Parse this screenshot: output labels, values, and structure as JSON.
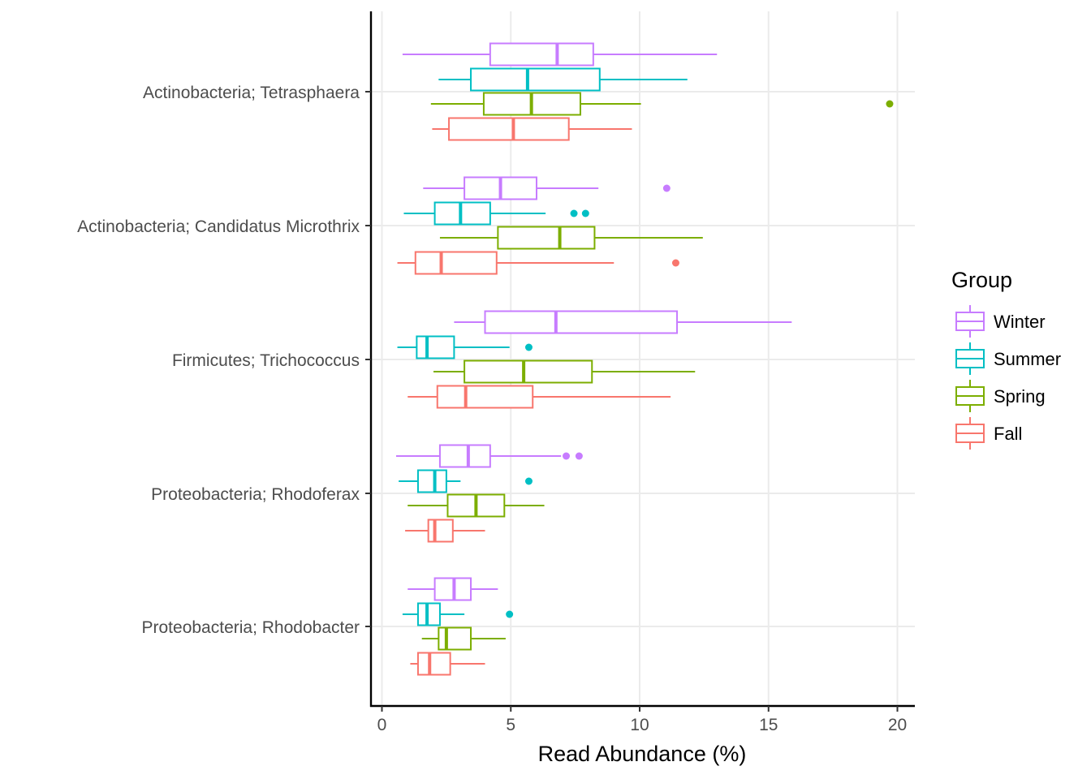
{
  "chart_data": {
    "type": "boxplot",
    "orientation": "horizontal",
    "xlabel": "Read Abundance (%)",
    "ylabel": "",
    "xlim": [
      -0.4,
      20.7
    ],
    "x_ticks": [
      "0",
      "5",
      "10",
      "15",
      "20"
    ],
    "grid": "major",
    "categories": [
      "Actinobacteria; Tetrasphaera",
      "Actinobacteria; Candidatus Microthrix",
      "Firmicutes; Trichococcus",
      "Proteobacteria; Rhodoferax",
      "Proteobacteria; Rhodobacter"
    ],
    "legend": {
      "title": "Group",
      "placement": "right",
      "entries": [
        "Winter",
        "Summer",
        "Spring",
        "Fall"
      ]
    },
    "series": [
      {
        "name": "Winter",
        "color": "#C77CFF",
        "boxes": [
          {
            "min": 0.8,
            "q1": 4.2,
            "median": 6.8,
            "q3": 8.2,
            "max": 13.0,
            "outliers": []
          },
          {
            "min": 1.6,
            "q1": 3.2,
            "median": 4.6,
            "q3": 6.0,
            "max": 8.4,
            "outliers": [
              11.05
            ]
          },
          {
            "min": 2.8,
            "q1": 4.0,
            "median": 6.75,
            "q3": 11.45,
            "max": 15.9,
            "outliers": []
          },
          {
            "min": 0.55,
            "q1": 2.25,
            "median": 3.35,
            "q3": 4.2,
            "max": 6.95,
            "outliers": [
              7.15,
              7.65
            ]
          },
          {
            "min": 1.0,
            "q1": 2.05,
            "median": 2.8,
            "q3": 3.45,
            "max": 4.5,
            "outliers": []
          }
        ]
      },
      {
        "name": "Summer",
        "color": "#00BFC4",
        "boxes": [
          {
            "min": 2.2,
            "q1": 3.45,
            "median": 5.65,
            "q3": 8.45,
            "max": 11.85,
            "outliers": []
          },
          {
            "min": 0.85,
            "q1": 2.05,
            "median": 3.05,
            "q3": 4.2,
            "max": 6.35,
            "outliers": [
              7.45,
              7.9
            ]
          },
          {
            "min": 0.6,
            "q1": 1.35,
            "median": 1.75,
            "q3": 2.8,
            "max": 4.95,
            "outliers": [
              5.7
            ]
          },
          {
            "min": 0.65,
            "q1": 1.4,
            "median": 2.05,
            "q3": 2.5,
            "max": 3.05,
            "outliers": [
              5.7
            ]
          },
          {
            "min": 0.8,
            "q1": 1.4,
            "median": 1.75,
            "q3": 2.25,
            "max": 3.2,
            "outliers": [
              4.95
            ]
          }
        ]
      },
      {
        "name": "Spring",
        "color": "#7CAE00",
        "boxes": [
          {
            "min": 1.9,
            "q1": 3.95,
            "median": 5.8,
            "q3": 7.7,
            "max": 10.05,
            "outliers": [
              19.7
            ]
          },
          {
            "min": 2.25,
            "q1": 4.5,
            "median": 6.9,
            "q3": 8.25,
            "max": 12.45,
            "outliers": []
          },
          {
            "min": 2.0,
            "q1": 3.2,
            "median": 5.5,
            "q3": 8.15,
            "max": 12.15,
            "outliers": []
          },
          {
            "min": 1.0,
            "q1": 2.55,
            "median": 3.65,
            "q3": 4.75,
            "max": 6.3,
            "outliers": []
          },
          {
            "min": 1.55,
            "q1": 2.2,
            "median": 2.5,
            "q3": 3.45,
            "max": 4.8,
            "outliers": []
          }
        ]
      },
      {
        "name": "Fall",
        "color": "#F8766D",
        "boxes": [
          {
            "min": 1.95,
            "q1": 2.6,
            "median": 5.1,
            "q3": 7.25,
            "max": 9.7,
            "outliers": []
          },
          {
            "min": 0.6,
            "q1": 1.3,
            "median": 2.3,
            "q3": 4.45,
            "max": 9.0,
            "outliers": [
              11.4
            ]
          },
          {
            "min": 1.0,
            "q1": 2.15,
            "median": 3.25,
            "q3": 5.85,
            "max": 11.2,
            "outliers": []
          },
          {
            "min": 0.9,
            "q1": 1.8,
            "median": 2.05,
            "q3": 2.75,
            "max": 4.0,
            "outliers": []
          },
          {
            "min": 1.1,
            "q1": 1.4,
            "median": 1.85,
            "q3": 2.65,
            "max": 4.0,
            "outliers": []
          }
        ]
      }
    ]
  }
}
